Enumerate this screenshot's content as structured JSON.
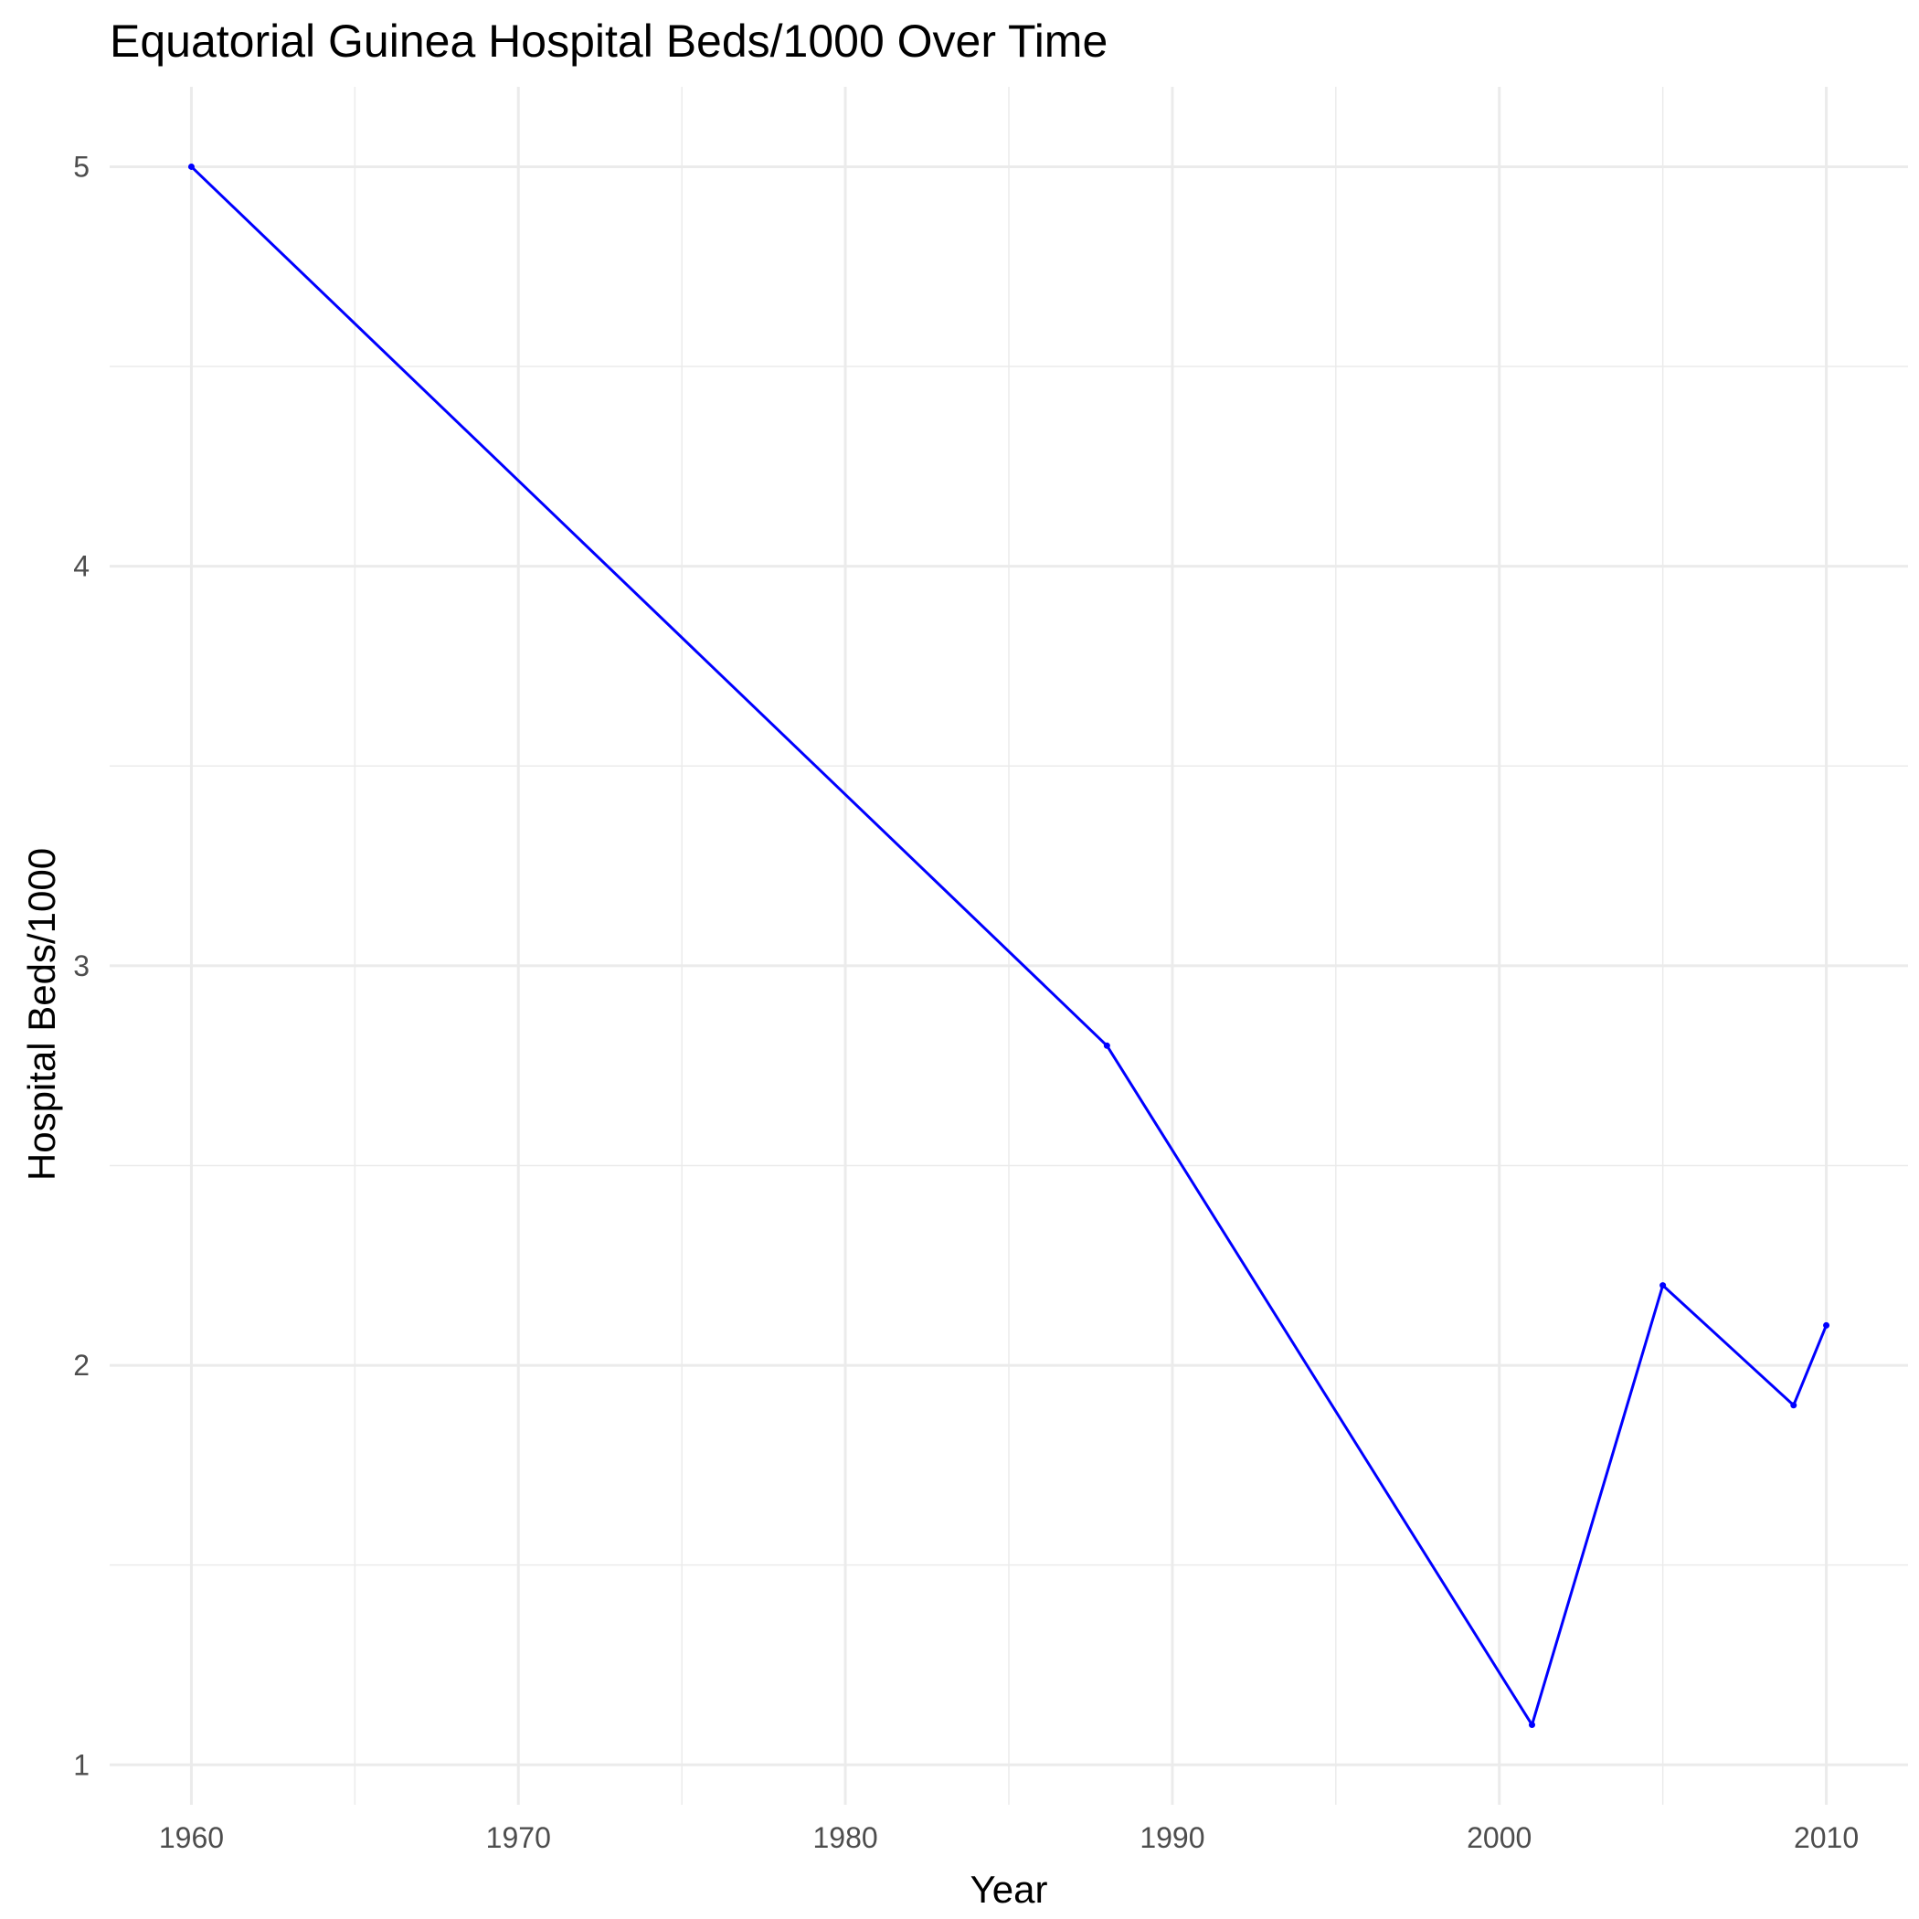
{
  "chart_data": {
    "type": "line",
    "title": "Equatorial Guinea Hospital Beds/1000 Over Time",
    "xlabel": "Year",
    "ylabel": "Hospital Beds/1000",
    "xlim": [
      1957.5,
      2012.5
    ],
    "ylim": [
      0.9,
      5.2
    ],
    "x_ticks": [
      1960,
      1970,
      1980,
      1990,
      2000,
      2010
    ],
    "y_ticks": [
      1,
      2,
      3,
      4,
      5
    ],
    "x_tick_labels": [
      "1960",
      "1970",
      "1980",
      "1990",
      "2000",
      "2010"
    ],
    "y_tick_labels": [
      "1",
      "2",
      "3",
      "4",
      "5"
    ],
    "grid": true,
    "legend": "none",
    "series": [
      {
        "color": "#0000ff",
        "x": [
          1960,
          1988,
          2001,
          2005,
          2009,
          2010
        ],
        "y": [
          5.0,
          2.8,
          1.1,
          2.2,
          1.9,
          2.1
        ]
      }
    ]
  }
}
